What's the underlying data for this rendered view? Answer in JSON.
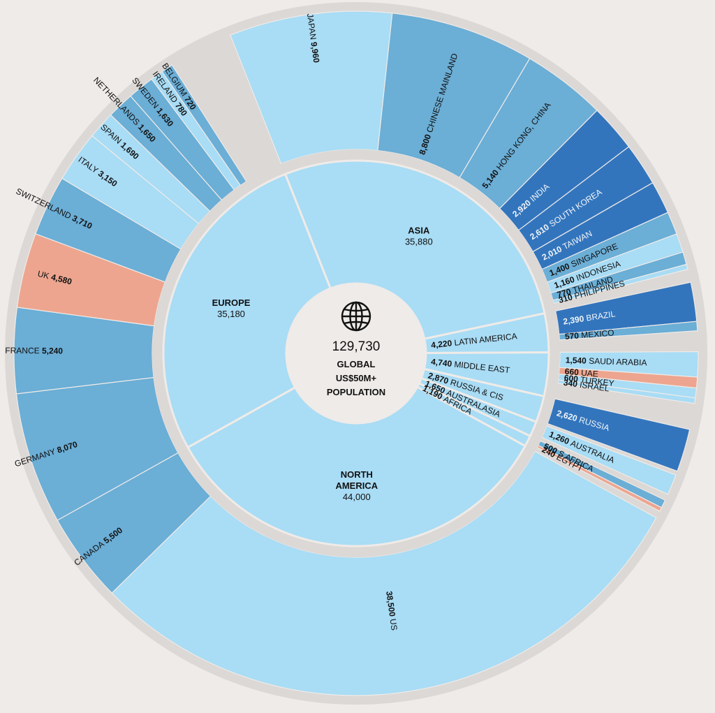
{
  "colors": {
    "background": "#efebe8",
    "track": "#dcd8d5",
    "pale": "#a9dcf5",
    "mid": "#6baed6",
    "dark": "#3375bd",
    "salmon": "#eda58f",
    "center": "#efebe8"
  },
  "icon": "globe-icon",
  "chart_data": {
    "type": "sunburst",
    "total": "129,730",
    "center_caption": [
      "GLOBAL",
      "US$50M+",
      "POPULATION"
    ],
    "regions": [
      {
        "name": "ASIA",
        "value": 35880,
        "label_value": "35,880",
        "countries": [
          {
            "name": "JAPAN",
            "value": 9960,
            "label_value": "9,960",
            "shade": "pale"
          },
          {
            "name": "CHINESE MAINLAND",
            "value": 8800,
            "label_value": "8,800",
            "shade": "mid"
          },
          {
            "name": "HONG KONG, CHINA",
            "value": 5140,
            "label_value": "5,140",
            "shade": "mid"
          },
          {
            "name": "INDIA",
            "value": 2920,
            "label_value": "2,920",
            "shade": "dark"
          },
          {
            "name": "SOUTH KOREA",
            "value": 2610,
            "label_value": "2,610",
            "shade": "dark"
          },
          {
            "name": "TAIWAN",
            "value": 2010,
            "label_value": "2,010",
            "shade": "dark"
          },
          {
            "name": "SINGAPORE",
            "value": 1400,
            "label_value": "1,400",
            "shade": "mid"
          },
          {
            "name": "INDONESIA",
            "value": 1160,
            "label_value": "1,160",
            "shade": "pale"
          },
          {
            "name": "THAILAND",
            "value": 770,
            "label_value": "770",
            "shade": "mid"
          },
          {
            "name": "PHILIPPINES",
            "value": 310,
            "label_value": "310",
            "shade": "pale"
          }
        ]
      },
      {
        "name": "LATIN AMERICA",
        "value": 4220,
        "label_value": "4,220",
        "countries": [
          {
            "name": "BRAZIL",
            "value": 2390,
            "label_value": "2,390",
            "shade": "dark"
          },
          {
            "name": "MEXICO",
            "value": 570,
            "label_value": "570",
            "shade": "mid"
          }
        ]
      },
      {
        "name": "MIDDLE EAST",
        "value": 4740,
        "label_value": "4,740",
        "countries": [
          {
            "name": "SAUDI ARABIA",
            "value": 1540,
            "label_value": "1,540",
            "shade": "pale"
          },
          {
            "name": "UAE",
            "value": 660,
            "label_value": "660",
            "shade": "salmon"
          },
          {
            "name": "TURKEY",
            "value": 600,
            "label_value": "600",
            "shade": "pale"
          },
          {
            "name": "ISRAEL",
            "value": 340,
            "label_value": "340",
            "shade": "pale"
          }
        ]
      },
      {
        "name": "RUSSIA & CIS",
        "value": 2870,
        "label_value": "2,870",
        "countries": [
          {
            "name": "RUSSIA",
            "value": 2620,
            "label_value": "2,620",
            "shade": "dark"
          }
        ]
      },
      {
        "name": "AUSTRALASIA",
        "value": 1650,
        "label_value": "1,650",
        "countries": [
          {
            "name": "AUSTRALIA",
            "value": 1260,
            "label_value": "1,260",
            "shade": "pale"
          }
        ]
      },
      {
        "name": "AFRICA",
        "value": 1190,
        "label_value": "1,190",
        "countries": [
          {
            "name": "S AFRICA",
            "value": 500,
            "label_value": "500",
            "shade": "mid"
          },
          {
            "name": "EGYPT",
            "value": 240,
            "label_value": "240",
            "shade": "salmon"
          }
        ]
      },
      {
        "name": "NORTH AMERICA",
        "value": 44000,
        "label_value": "44,000",
        "countries": [
          {
            "name": "US",
            "value": 38500,
            "label_value": "38,500",
            "shade": "pale"
          },
          {
            "name": "CANADA",
            "value": 5500,
            "label_value": "5,500",
            "shade": "mid"
          }
        ]
      },
      {
        "name": "EUROPE",
        "value": 35180,
        "label_value": "35,180",
        "countries": [
          {
            "name": "GERMANY",
            "value": 8070,
            "label_value": "8,070",
            "shade": "mid"
          },
          {
            "name": "FRANCE",
            "value": 5240,
            "label_value": "5,240",
            "shade": "mid"
          },
          {
            "name": "UK",
            "value": 4580,
            "label_value": "4,580",
            "shade": "salmon"
          },
          {
            "name": "SWITZERLAND",
            "value": 3710,
            "label_value": "3,710",
            "shade": "mid"
          },
          {
            "name": "ITALY",
            "value": 3150,
            "label_value": "3,150",
            "shade": "pale"
          },
          {
            "name": "SPAIN",
            "value": 1690,
            "label_value": "1,690",
            "shade": "pale"
          },
          {
            "name": "NETHERLANDS",
            "value": 1650,
            "label_value": "1,650",
            "shade": "mid"
          },
          {
            "name": "SWEDEN",
            "value": 1630,
            "label_value": "1,630",
            "shade": "mid"
          },
          {
            "name": "IRELAND",
            "value": 780,
            "label_value": "780",
            "shade": "pale"
          },
          {
            "name": "BELGIUM",
            "value": 720,
            "label_value": "720",
            "shade": "mid"
          }
        ]
      }
    ]
  }
}
